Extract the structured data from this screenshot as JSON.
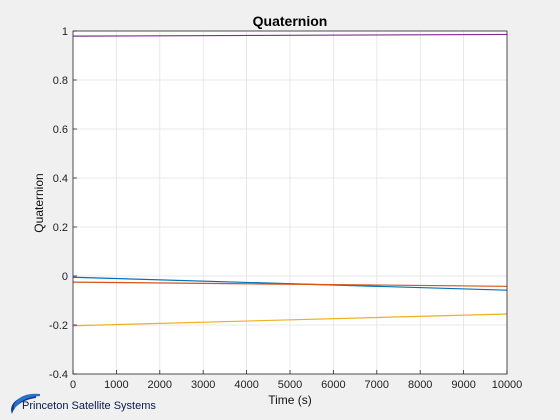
{
  "chart_data": {
    "type": "line",
    "title": "Quaternion",
    "xlabel": "Time (s)",
    "ylabel": "Quaternion",
    "xlim": [
      0,
      10000
    ],
    "ylim": [
      -0.4,
      1
    ],
    "xticks": [
      0,
      1000,
      2000,
      3000,
      4000,
      5000,
      6000,
      7000,
      8000,
      9000,
      10000
    ],
    "yticks": [
      -0.4,
      -0.2,
      0,
      0.2,
      0.4,
      0.6,
      0.8,
      1
    ],
    "xtick_labels": [
      "0",
      "1000",
      "2000",
      "3000",
      "4000",
      "5000",
      "6000",
      "7000",
      "8000",
      "9000",
      "10000"
    ],
    "ytick_labels": [
      "-0.4",
      "-0.2",
      "0",
      "0.2",
      "0.4",
      "0.6",
      "0.8",
      "1"
    ],
    "grid": true,
    "series": [
      {
        "color": "#0072bd",
        "x": [
          0,
          10000
        ],
        "y": [
          -0.005,
          -0.058
        ]
      },
      {
        "color": "#d95319",
        "x": [
          0,
          10000
        ],
        "y": [
          -0.025,
          -0.042
        ]
      },
      {
        "color": "#edb120",
        "x": [
          0,
          10000
        ],
        "y": [
          -0.203,
          -0.155
        ]
      },
      {
        "color": "#7e2f8e",
        "x": [
          0,
          10000
        ],
        "y": [
          0.979,
          0.986
        ]
      }
    ]
  },
  "logo": {
    "text": "Princeton Satellite Systems",
    "color": "#0a3a8a"
  }
}
